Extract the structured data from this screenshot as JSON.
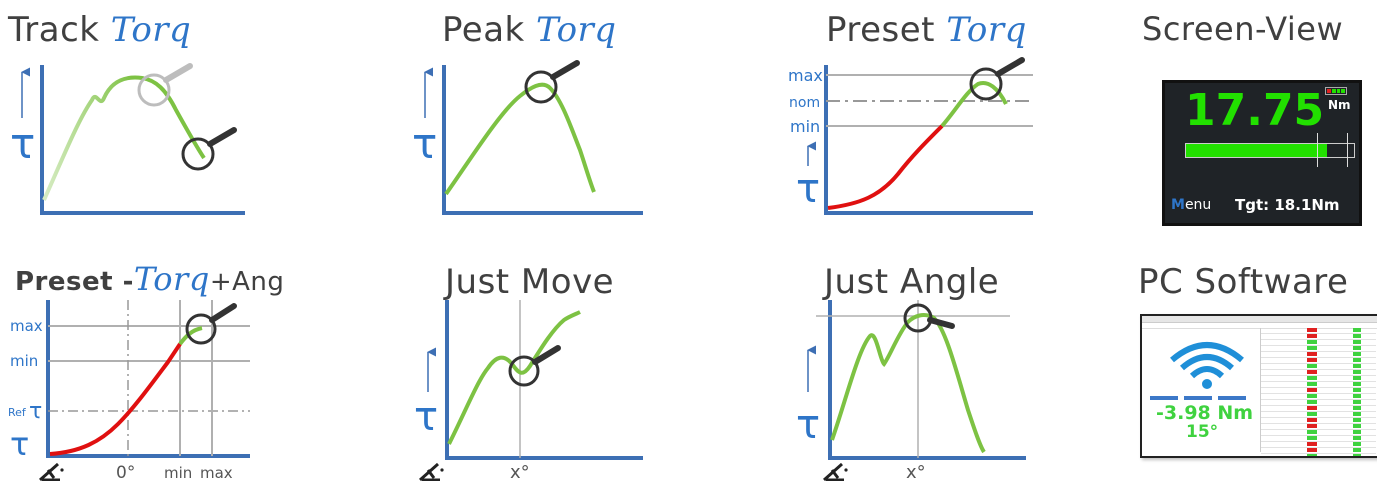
{
  "panels": {
    "track": {
      "title_a": "Track ",
      "title_b": "Torq"
    },
    "peak": {
      "title_a": "Peak ",
      "title_b": "Torq"
    },
    "preset": {
      "title_a": "Preset ",
      "title_b": "Torq",
      "labels": {
        "max": "max",
        "nom": "nom",
        "min": "min"
      }
    },
    "screen_view": {
      "title": "Screen-View"
    },
    "preset_ang": {
      "title_a": "Preset -",
      "title_b": "Torq",
      "title_c": "+Ang",
      "labels": {
        "max": "max",
        "min": "min",
        "ref": "Ref",
        "x_zero": "0°",
        "x_min": "min",
        "x_max": "max"
      }
    },
    "just_move": {
      "title": "Just Move",
      "x_label": "x°"
    },
    "just_angle": {
      "title": "Just Angle",
      "x_label": "x°"
    },
    "pc_software": {
      "title": "PC Software"
    }
  },
  "axis": {
    "tau": "τ"
  },
  "device": {
    "value": "17.75",
    "unit": "Nm",
    "menu_m": "M",
    "menu_rest": "enu",
    "target": "Tgt: 18.1Nm",
    "fill_fraction": 0.84
  },
  "pc": {
    "torque": "-3.98 Nm",
    "angle": "15°"
  },
  "colors": {
    "axis": "#3d6fb4",
    "curve_green": "#7dc243",
    "curve_red": "#e01010",
    "tau_blue": "#2e75c8",
    "lcd_green": "#22e000"
  }
}
